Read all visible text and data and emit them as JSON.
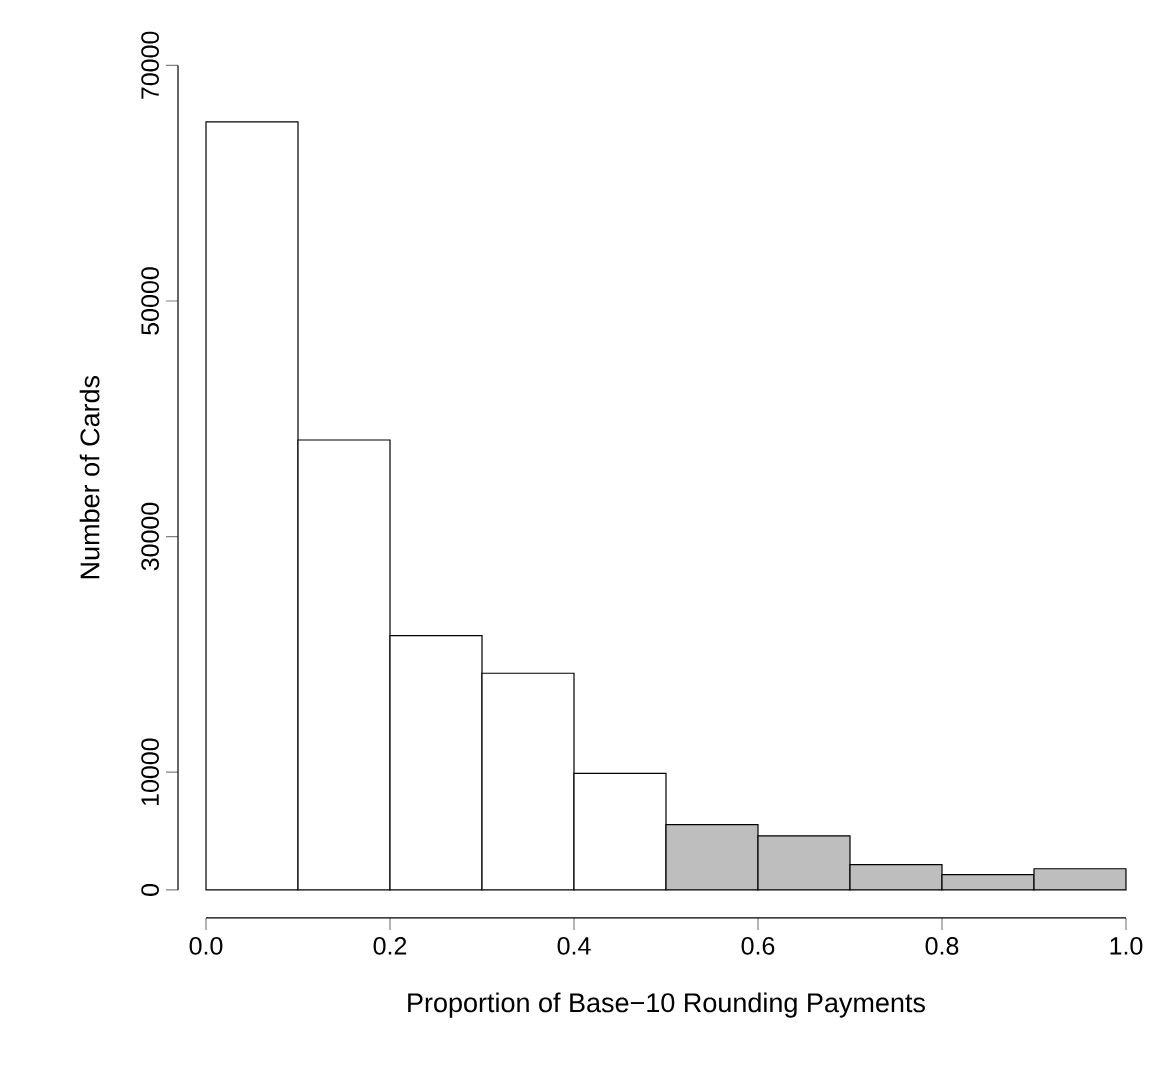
{
  "chart_data": {
    "type": "histogram",
    "xlabel": "Proportion of Base−10 Rounding Payments",
    "ylabel": "Number of Cards",
    "bins": [
      0,
      0.1,
      0.2,
      0.3,
      0.4,
      0.5,
      0.6,
      0.7,
      0.8,
      0.9,
      1.0
    ],
    "values": [
      65200,
      38200,
      21600,
      18400,
      9900,
      5550,
      4600,
      2150,
      1300,
      1800
    ],
    "colors": [
      "#ffffff",
      "#ffffff",
      "#ffffff",
      "#ffffff",
      "#ffffff",
      "#bebebe",
      "#bebebe",
      "#bebebe",
      "#bebebe",
      "#bebebe"
    ],
    "xlim": [
      0,
      1
    ],
    "ylim": [
      0,
      70000
    ],
    "xticks": [
      {
        "value": 0,
        "label": "0.0"
      },
      {
        "value": 0.2,
        "label": "0.2"
      },
      {
        "value": 0.4,
        "label": "0.4"
      },
      {
        "value": 0.6,
        "label": "0.6"
      },
      {
        "value": 0.8,
        "label": "0.8"
      },
      {
        "value": 1,
        "label": "1.0"
      }
    ],
    "yticks": [
      0,
      10000,
      30000,
      50000,
      70000
    ]
  }
}
